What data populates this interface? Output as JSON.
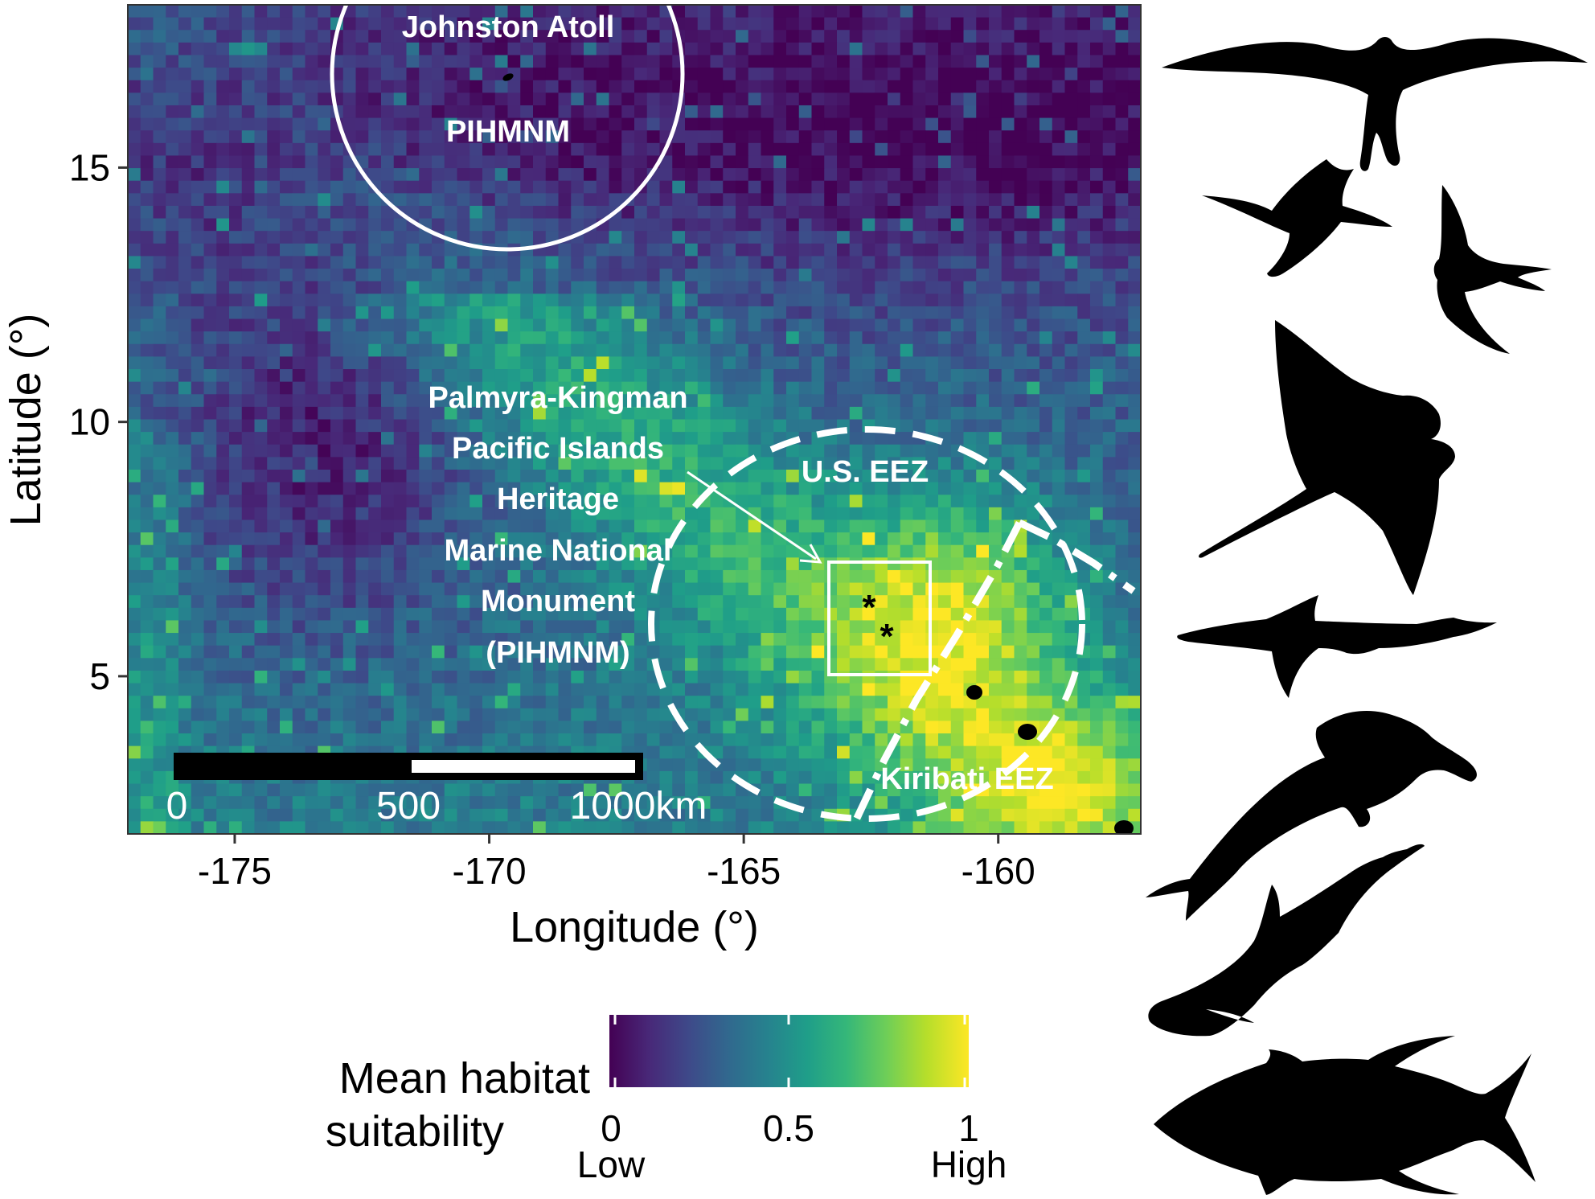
{
  "map": {
    "axes": {
      "x_label": "Longitude (°)",
      "y_label": "Latitude (°)",
      "x_ticks": [
        "-175",
        "-170",
        "-165",
        "-160"
      ],
      "y_ticks": [
        "15",
        "10",
        "5"
      ],
      "x_range": [
        -177.1,
        -157.2
      ],
      "y_range": [
        1.9,
        18.2
      ]
    },
    "raster": {
      "variable": "Mean habitat suitability",
      "colormap": "viridis",
      "range": [
        0,
        1
      ]
    },
    "annotations": {
      "johnston_title": "Johnston Atoll",
      "johnston_sub": "PIHMNM",
      "pihmnm_label": [
        "Palmyra-Kingman",
        "Pacific Islands",
        "Heritage",
        "Marine National",
        "Monument",
        "(PIHMNM)"
      ],
      "us_eez": "U.S. EEZ",
      "kiribati_eez": "Kiribati EEZ"
    },
    "scale_bar": {
      "labels": [
        "0",
        "500",
        "1000km"
      ],
      "units": "km"
    },
    "markers": {
      "asterisks": [
        "*",
        "*"
      ],
      "islands": "black dots"
    }
  },
  "legend": {
    "title_line1": "Mean habitat",
    "title_line2": "suitability",
    "ticks": [
      "0",
      "0.5",
      "1"
    ],
    "low": "Low",
    "high": "High",
    "colors": [
      "#440154",
      "#482878",
      "#3e4989",
      "#31688e",
      "#26828e",
      "#1f9e89",
      "#35b779",
      "#6ece58",
      "#b5de2b",
      "#fde725"
    ]
  },
  "silhouettes": {
    "items": [
      "frigatebird-icon",
      "booby-icon",
      "tern-icon",
      "manta-ray-icon",
      "shark-icon",
      "dolphin-icon",
      "false-killer-whale-icon",
      "tuna-icon"
    ]
  }
}
